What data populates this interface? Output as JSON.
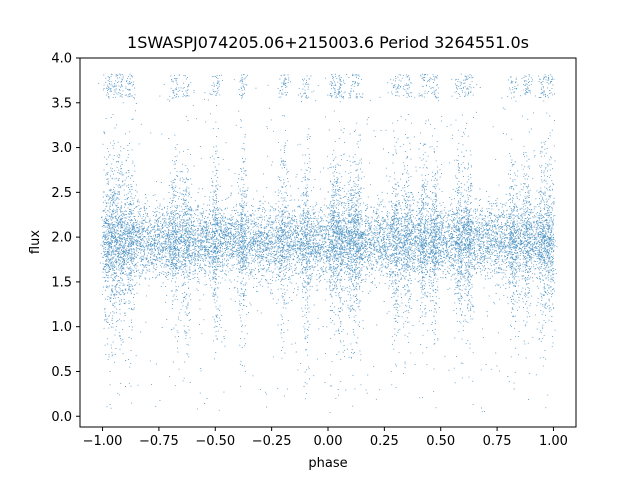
{
  "chart_data": {
    "type": "scatter",
    "title": "1SWASPJ074205.06+215003.6 Period 3264551.0s",
    "xlabel": "phase",
    "ylabel": "flux",
    "xlim": [
      -1.1,
      1.1
    ],
    "ylim": [
      -0.12,
      4.0
    ],
    "xticks": [
      -1.0,
      -0.75,
      -0.5,
      -0.25,
      0.0,
      0.25,
      0.5,
      0.75,
      1.0
    ],
    "xtick_labels": [
      "−1.00",
      "−0.75",
      "−0.50",
      "−0.25",
      "0.00",
      "0.25",
      "0.50",
      "0.75",
      "1.00"
    ],
    "yticks": [
      0.0,
      0.5,
      1.0,
      1.5,
      2.0,
      2.5,
      3.0,
      3.5,
      4.0
    ],
    "ytick_labels": [
      "0.0",
      "0.5",
      "1.0",
      "1.5",
      "2.0",
      "2.5",
      "3.0",
      "3.5",
      "4.0"
    ],
    "grid": false,
    "marker_color": "#1f77b4",
    "series": [
      {
        "phase_range": [
          -1.0,
          1.0
        ],
        "flux_center": 1.95,
        "flux_core_range": [
          1.45,
          2.3
        ],
        "flux_range": [
          0.03,
          3.82
        ],
        "scatter_bands_phase": [
          -0.98,
          -0.95,
          -0.92,
          -0.88,
          -0.68,
          -0.63,
          -0.5,
          -0.38,
          -0.2,
          -0.1,
          0.02,
          0.05,
          0.1,
          0.13,
          0.3,
          0.35,
          0.42,
          0.47,
          0.58,
          0.62,
          0.82,
          0.88,
          0.95,
          0.98
        ]
      }
    ]
  }
}
